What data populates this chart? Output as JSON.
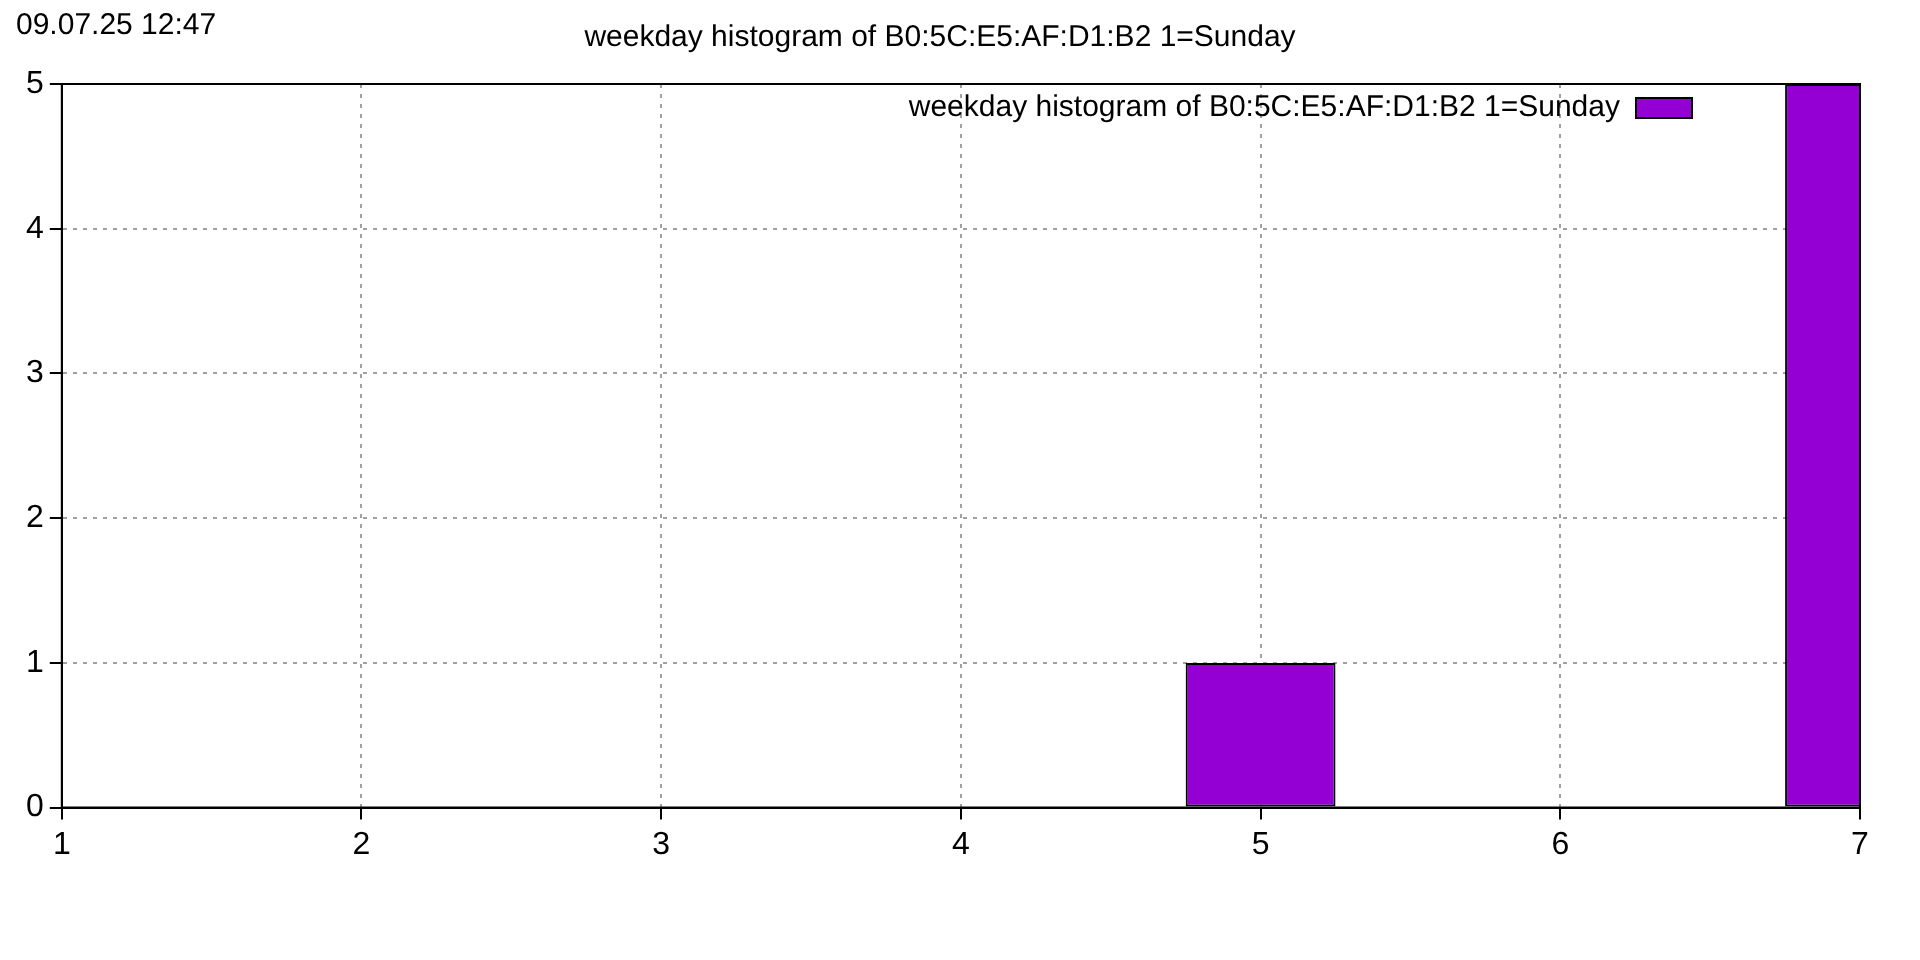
{
  "chart_data": {
    "type": "bar",
    "title": "weekday histogram of B0:5C:E5:AF:D1:B2 1=Sunday",
    "annotations": [
      "09.07.25 12:47"
    ],
    "x": [
      5,
      7
    ],
    "series": [
      {
        "name": "weekday histogram of B0:5C:E5:AF:D1:B2 1=Sunday",
        "color": "#9400d3",
        "values": [
          1,
          5
        ]
      }
    ],
    "xlim": [
      1,
      7
    ],
    "xticks": [
      1,
      2,
      3,
      4,
      5,
      6,
      7
    ],
    "ylim": [
      0,
      5
    ],
    "yticks": [
      0,
      1,
      2,
      3,
      4,
      5
    ],
    "grid": true,
    "legend": "top right"
  }
}
